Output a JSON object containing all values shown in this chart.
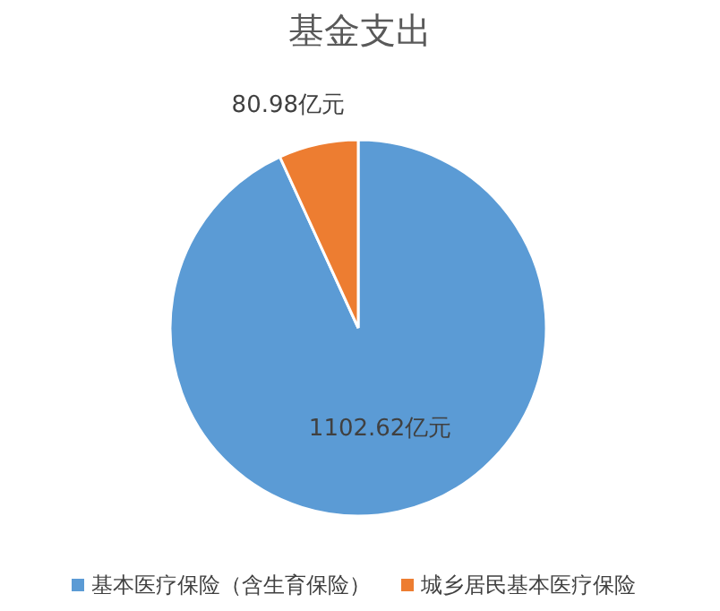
{
  "chart_data": {
    "type": "pie",
    "title": "基金支出",
    "categories": [
      "基本医疗保险（含生育保险）",
      "城乡居民基本医疗保险"
    ],
    "values": [
      1102.62,
      80.98
    ],
    "colors": [
      "#5b9bd5",
      "#ed7d31"
    ],
    "value_labels": [
      "1102.62亿元",
      "80.98亿元"
    ],
    "legend": "bottom"
  }
}
